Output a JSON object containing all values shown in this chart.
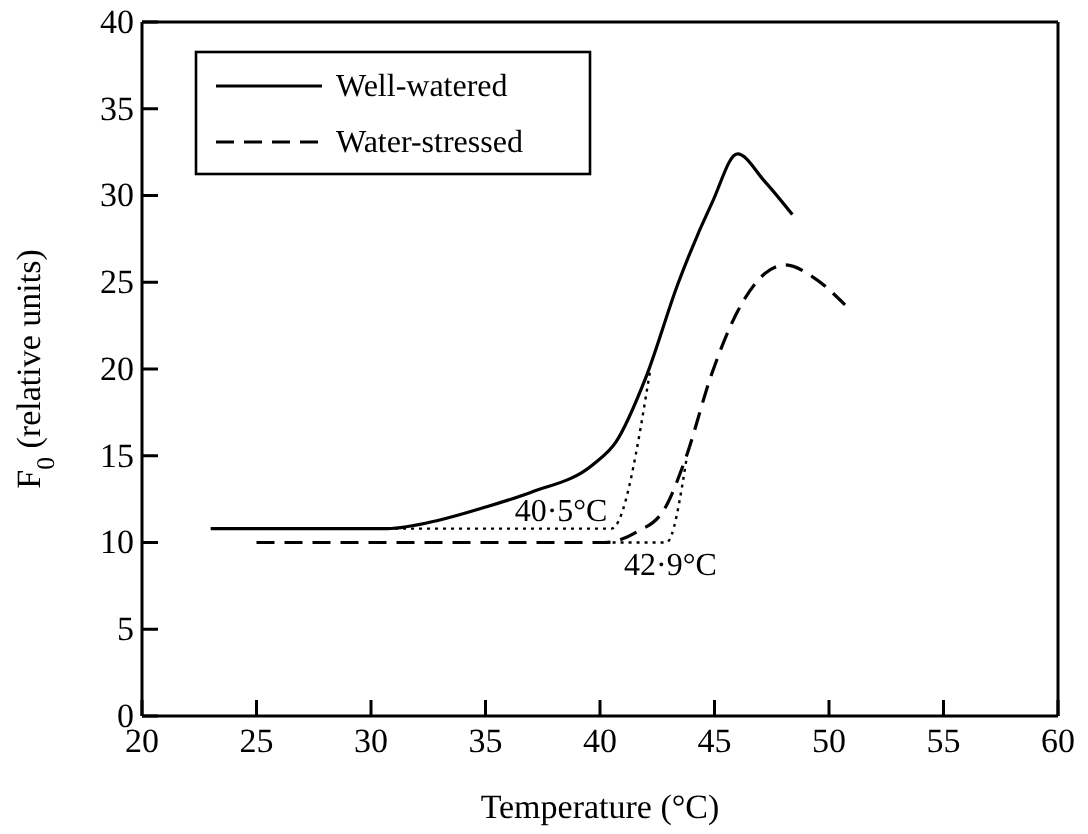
{
  "chart_data": {
    "type": "line",
    "xlabel": "Temperature (°C)",
    "ylabel": "F$_{0}$ (relative units)",
    "xlim": [
      20,
      60
    ],
    "ylim": [
      0,
      40
    ],
    "xticks": [
      20,
      25,
      30,
      35,
      40,
      45,
      50,
      55,
      60
    ],
    "yticks": [
      0,
      5,
      10,
      15,
      20,
      25,
      30,
      35,
      40
    ],
    "grid": false,
    "legend": "top left",
    "marker": "none",
    "series": [
      {
        "name": "Well-watered",
        "color": "#000000",
        "line_style": "solid",
        "x": [
          23,
          30.7,
          33,
          34.9,
          37,
          39.7,
          40.7,
          42,
          43.4,
          44.9,
          46,
          47.2,
          48.4
        ],
        "values": [
          10.8,
          10.8,
          11.3,
          12,
          12.9,
          14.5,
          15.8,
          19.5,
          24.9,
          29.6,
          32.4,
          30.8,
          28.9
        ]
      },
      {
        "name": "Water-stressed",
        "color": "#000000",
        "line_style": "dashed",
        "x": [
          25,
          40.2,
          41.6,
          42.8,
          43.7,
          44.9,
          46,
          47.2,
          48.1,
          49.3,
          50.7
        ],
        "values": [
          10,
          10,
          10.6,
          11.9,
          14.7,
          19.8,
          23.3,
          25.5,
          26,
          25.3,
          23.7
        ]
      },
      {
        "color": "#000000",
        "line_style": "dotted",
        "x": [
          30.7,
          40.5,
          42.2
        ],
        "values": [
          10.8,
          10.8,
          20
        ]
      },
      {
        "color": "#000000",
        "line_style": "dotted",
        "x": [
          40.2,
          42.9,
          43.8
        ],
        "values": [
          10,
          10,
          15
        ]
      }
    ],
    "annotations": [
      {
        "text": "40·5°C",
        "x": 40.5,
        "y": 10.8
      },
      {
        "text": "42·9°C",
        "x": 42.9,
        "y": 10
      }
    ]
  }
}
